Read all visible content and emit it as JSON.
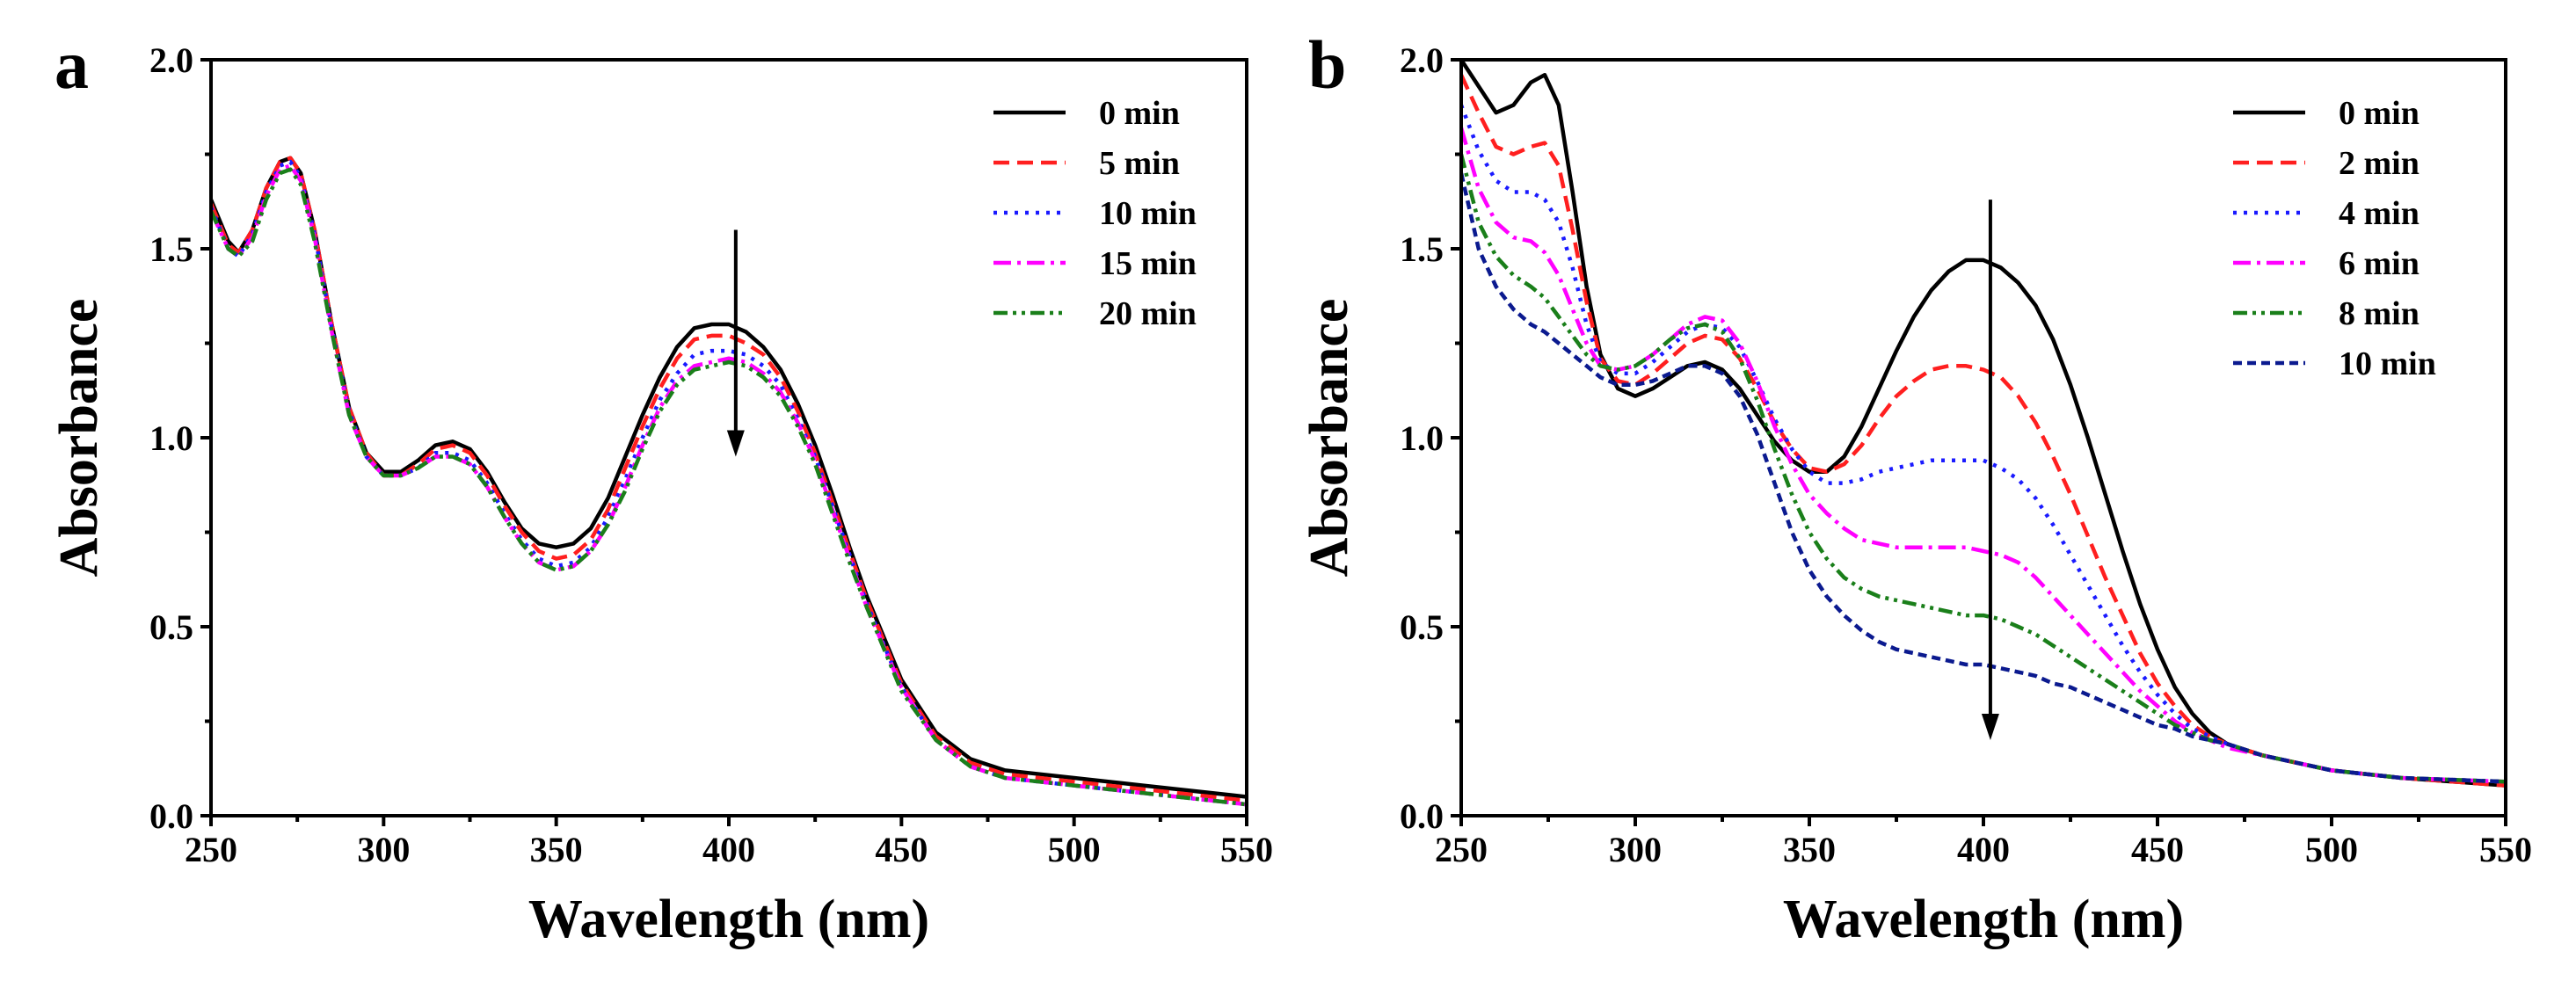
{
  "colors": {
    "axis": "#000000",
    "background": "#ffffff"
  },
  "chart_data": [
    {
      "panel": "a",
      "type": "line",
      "title": "",
      "xlabel": "Wavelength (nm)",
      "ylabel": "Absorbance",
      "xlim": [
        250,
        550
      ],
      "ylim": [
        0,
        2.0
      ],
      "xticks": [
        250,
        300,
        350,
        400,
        450,
        500,
        550
      ],
      "yticks": [
        0.0,
        0.5,
        1.0,
        1.5,
        2.0
      ],
      "xtick_labels": [
        "250",
        "300",
        "350",
        "400",
        "450",
        "500",
        "550"
      ],
      "ytick_labels": [
        "0.0",
        "0.5",
        "1.0",
        "1.5",
        "2.0"
      ],
      "legend_position": "top-right",
      "annotations": [
        {
          "type": "arrow",
          "direction": "down",
          "x": 402,
          "y_from": 1.55,
          "y_to": 0.95
        }
      ],
      "x": [
        250,
        255,
        258,
        262,
        266,
        270,
        273,
        276,
        280,
        285,
        290,
        295,
        300,
        305,
        310,
        315,
        320,
        325,
        330,
        335,
        340,
        345,
        350,
        355,
        360,
        365,
        370,
        375,
        380,
        385,
        390,
        395,
        400,
        405,
        410,
        415,
        420,
        425,
        430,
        435,
        440,
        450,
        460,
        470,
        480,
        490,
        500,
        520,
        550
      ],
      "series": [
        {
          "name": "0 min",
          "color": "#000000",
          "dash": "solid",
          "values": [
            1.63,
            1.52,
            1.49,
            1.55,
            1.66,
            1.73,
            1.74,
            1.7,
            1.55,
            1.3,
            1.08,
            0.96,
            0.91,
            0.91,
            0.94,
            0.98,
            0.99,
            0.97,
            0.91,
            0.83,
            0.76,
            0.72,
            0.71,
            0.72,
            0.76,
            0.84,
            0.95,
            1.06,
            1.16,
            1.24,
            1.29,
            1.3,
            1.3,
            1.28,
            1.24,
            1.18,
            1.09,
            0.98,
            0.85,
            0.71,
            0.58,
            0.36,
            0.22,
            0.15,
            0.12,
            0.11,
            0.1,
            0.08,
            0.05
          ]
        },
        {
          "name": "5 min",
          "color": "#ff1f1f",
          "dash": "dash",
          "values": [
            1.62,
            1.51,
            1.49,
            1.55,
            1.66,
            1.73,
            1.74,
            1.7,
            1.55,
            1.3,
            1.08,
            0.96,
            0.9,
            0.9,
            0.93,
            0.97,
            0.98,
            0.96,
            0.9,
            0.82,
            0.75,
            0.7,
            0.68,
            0.69,
            0.73,
            0.81,
            0.92,
            1.03,
            1.13,
            1.21,
            1.26,
            1.27,
            1.27,
            1.25,
            1.22,
            1.16,
            1.07,
            0.96,
            0.83,
            0.7,
            0.57,
            0.35,
            0.21,
            0.14,
            0.11,
            0.1,
            0.09,
            0.07,
            0.04
          ]
        },
        {
          "name": "10 min",
          "color": "#1a1aff",
          "dash": "dot",
          "values": [
            1.61,
            1.5,
            1.48,
            1.54,
            1.65,
            1.72,
            1.73,
            1.69,
            1.54,
            1.29,
            1.07,
            0.95,
            0.9,
            0.9,
            0.92,
            0.96,
            0.96,
            0.94,
            0.88,
            0.8,
            0.73,
            0.68,
            0.66,
            0.67,
            0.71,
            0.79,
            0.89,
            1.0,
            1.1,
            1.17,
            1.22,
            1.23,
            1.23,
            1.22,
            1.19,
            1.14,
            1.05,
            0.95,
            0.82,
            0.69,
            0.56,
            0.34,
            0.2,
            0.13,
            0.1,
            0.09,
            0.08,
            0.06,
            0.03
          ]
        },
        {
          "name": "15 min",
          "color": "#ff00ff",
          "dash": "dashdot",
          "values": [
            1.6,
            1.5,
            1.48,
            1.53,
            1.64,
            1.71,
            1.72,
            1.68,
            1.53,
            1.28,
            1.06,
            0.95,
            0.9,
            0.9,
            0.92,
            0.95,
            0.95,
            0.93,
            0.87,
            0.79,
            0.72,
            0.67,
            0.65,
            0.66,
            0.7,
            0.77,
            0.87,
            0.98,
            1.08,
            1.15,
            1.19,
            1.2,
            1.21,
            1.2,
            1.17,
            1.12,
            1.04,
            0.94,
            0.81,
            0.68,
            0.55,
            0.34,
            0.2,
            0.13,
            0.1,
            0.09,
            0.08,
            0.06,
            0.03
          ]
        },
        {
          "name": "20 min",
          "color": "#1a7f1a",
          "dash": "dashdotdot",
          "values": [
            1.6,
            1.5,
            1.48,
            1.52,
            1.63,
            1.7,
            1.71,
            1.67,
            1.52,
            1.28,
            1.06,
            0.95,
            0.9,
            0.9,
            0.92,
            0.95,
            0.95,
            0.93,
            0.87,
            0.79,
            0.72,
            0.67,
            0.65,
            0.66,
            0.7,
            0.77,
            0.86,
            0.97,
            1.07,
            1.14,
            1.18,
            1.19,
            1.2,
            1.19,
            1.16,
            1.11,
            1.03,
            0.93,
            0.8,
            0.67,
            0.55,
            0.33,
            0.2,
            0.13,
            0.1,
            0.09,
            0.08,
            0.06,
            0.03
          ]
        }
      ]
    },
    {
      "panel": "b",
      "type": "line",
      "title": "",
      "xlabel": "Wavelength (nm)",
      "ylabel": "Absorbance",
      "xlim": [
        250,
        550
      ],
      "ylim": [
        0,
        2.0
      ],
      "xticks": [
        250,
        300,
        350,
        400,
        450,
        500,
        550
      ],
      "yticks": [
        0.0,
        0.5,
        1.0,
        1.5,
        2.0
      ],
      "xtick_labels": [
        "250",
        "300",
        "350",
        "400",
        "450",
        "500",
        "550"
      ],
      "ytick_labels": [
        "0.0",
        "0.5",
        "1.0",
        "1.5",
        "2.0"
      ],
      "legend_position": "top-right",
      "annotations": [
        {
          "type": "arrow",
          "direction": "down",
          "x": 402,
          "y_from": 1.63,
          "y_to": 0.2
        }
      ],
      "x": [
        250,
        255,
        260,
        265,
        270,
        274,
        278,
        282,
        286,
        290,
        295,
        300,
        305,
        310,
        315,
        320,
        325,
        330,
        335,
        340,
        345,
        350,
        355,
        360,
        365,
        370,
        375,
        380,
        385,
        390,
        395,
        400,
        405,
        410,
        415,
        420,
        425,
        430,
        435,
        440,
        445,
        450,
        455,
        460,
        465,
        470,
        480,
        490,
        500,
        520,
        550
      ],
      "series": [
        {
          "name": "0 min",
          "color": "#000000",
          "dash": "solid",
          "values": [
            2.0,
            1.93,
            1.86,
            1.88,
            1.94,
            1.96,
            1.88,
            1.65,
            1.4,
            1.22,
            1.13,
            1.11,
            1.13,
            1.16,
            1.19,
            1.2,
            1.18,
            1.13,
            1.06,
            0.99,
            0.94,
            0.91,
            0.91,
            0.95,
            1.03,
            1.13,
            1.23,
            1.32,
            1.39,
            1.44,
            1.47,
            1.47,
            1.45,
            1.41,
            1.35,
            1.26,
            1.14,
            1.0,
            0.85,
            0.7,
            0.56,
            0.44,
            0.34,
            0.27,
            0.22,
            0.19,
            0.16,
            0.14,
            0.12,
            0.1,
            0.08
          ]
        },
        {
          "name": "2 min",
          "color": "#ff1f1f",
          "dash": "dash",
          "values": [
            1.96,
            1.86,
            1.77,
            1.75,
            1.77,
            1.78,
            1.72,
            1.55,
            1.36,
            1.21,
            1.15,
            1.14,
            1.17,
            1.21,
            1.25,
            1.27,
            1.26,
            1.21,
            1.13,
            1.04,
            0.97,
            0.92,
            0.91,
            0.93,
            0.98,
            1.05,
            1.11,
            1.15,
            1.18,
            1.19,
            1.19,
            1.18,
            1.16,
            1.11,
            1.04,
            0.95,
            0.85,
            0.74,
            0.63,
            0.53,
            0.43,
            0.35,
            0.29,
            0.24,
            0.21,
            0.19,
            0.16,
            0.14,
            0.12,
            0.1,
            0.08
          ]
        },
        {
          "name": "4 min",
          "color": "#1a1aff",
          "dash": "dot",
          "values": [
            1.88,
            1.76,
            1.68,
            1.65,
            1.65,
            1.63,
            1.57,
            1.45,
            1.3,
            1.2,
            1.17,
            1.17,
            1.2,
            1.24,
            1.28,
            1.3,
            1.29,
            1.24,
            1.15,
            1.05,
            0.97,
            0.91,
            0.88,
            0.88,
            0.89,
            0.91,
            0.92,
            0.93,
            0.94,
            0.94,
            0.94,
            0.94,
            0.92,
            0.89,
            0.84,
            0.77,
            0.69,
            0.61,
            0.53,
            0.45,
            0.38,
            0.32,
            0.27,
            0.23,
            0.21,
            0.19,
            0.16,
            0.14,
            0.12,
            0.1,
            0.09
          ]
        },
        {
          "name": "6 min",
          "color": "#ff00ff",
          "dash": "dashdot",
          "values": [
            1.82,
            1.66,
            1.57,
            1.53,
            1.52,
            1.49,
            1.43,
            1.34,
            1.25,
            1.19,
            1.18,
            1.19,
            1.22,
            1.26,
            1.3,
            1.32,
            1.31,
            1.25,
            1.15,
            1.03,
            0.93,
            0.85,
            0.8,
            0.76,
            0.73,
            0.72,
            0.71,
            0.71,
            0.71,
            0.71,
            0.71,
            0.7,
            0.69,
            0.67,
            0.63,
            0.58,
            0.53,
            0.48,
            0.43,
            0.38,
            0.33,
            0.29,
            0.25,
            0.22,
            0.2,
            0.18,
            0.16,
            0.14,
            0.12,
            0.1,
            0.09
          ]
        },
        {
          "name": "8 min",
          "color": "#1a7f1a",
          "dash": "dashdotdot",
          "values": [
            1.75,
            1.57,
            1.48,
            1.43,
            1.4,
            1.37,
            1.32,
            1.27,
            1.22,
            1.19,
            1.18,
            1.19,
            1.22,
            1.26,
            1.29,
            1.3,
            1.28,
            1.21,
            1.1,
            0.97,
            0.85,
            0.75,
            0.68,
            0.63,
            0.6,
            0.58,
            0.57,
            0.56,
            0.55,
            0.54,
            0.53,
            0.53,
            0.52,
            0.5,
            0.48,
            0.45,
            0.42,
            0.39,
            0.36,
            0.33,
            0.3,
            0.27,
            0.24,
            0.22,
            0.2,
            0.19,
            0.16,
            0.14,
            0.12,
            0.1,
            0.09
          ]
        },
        {
          "name": "10 min",
          "color": "#0b1a8f",
          "dash": "shortdash",
          "values": [
            1.7,
            1.5,
            1.4,
            1.34,
            1.3,
            1.28,
            1.25,
            1.22,
            1.19,
            1.16,
            1.14,
            1.14,
            1.15,
            1.17,
            1.19,
            1.19,
            1.17,
            1.11,
            1.01,
            0.88,
            0.75,
            0.65,
            0.58,
            0.53,
            0.49,
            0.46,
            0.44,
            0.43,
            0.42,
            0.41,
            0.4,
            0.4,
            0.39,
            0.38,
            0.37,
            0.35,
            0.34,
            0.32,
            0.3,
            0.28,
            0.26,
            0.24,
            0.23,
            0.21,
            0.2,
            0.19,
            0.16,
            0.14,
            0.12,
            0.1,
            0.09
          ]
        }
      ]
    }
  ]
}
